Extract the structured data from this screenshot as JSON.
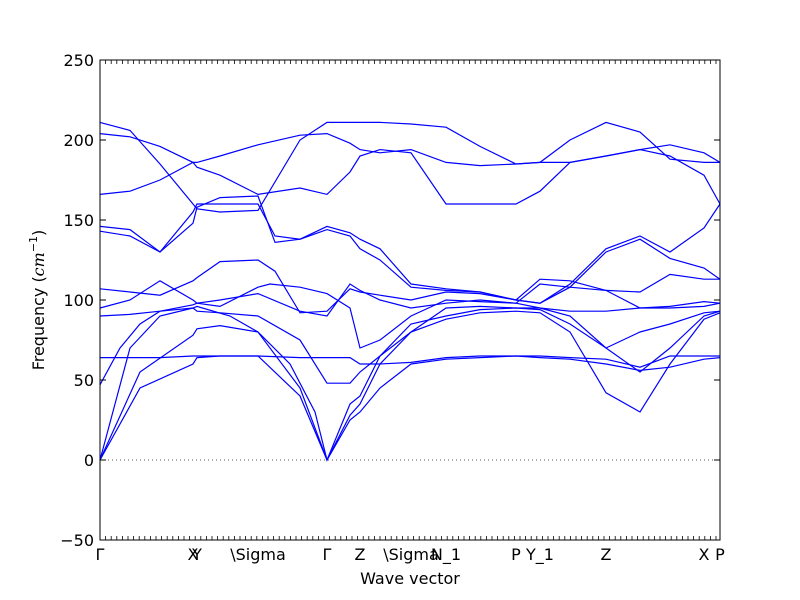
{
  "chart_data": {
    "type": "line",
    "xlabel": "Wave vector",
    "ylabel": "Frequency",
    "ylabel_unit": "cm",
    "ylabel_unit_exp": "−1",
    "ylim": [
      -50,
      250
    ],
    "yticks": [
      -50,
      0,
      50,
      100,
      150,
      200,
      250
    ],
    "xlim": [
      0,
      620
    ],
    "xticks": [
      {
        "pos": 0,
        "label": "Γ"
      },
      {
        "pos": 93,
        "label": "X"
      },
      {
        "pos": 97,
        "label": "Y"
      },
      {
        "pos": 158,
        "label": "\\Sigma"
      },
      {
        "pos": 227,
        "label": "Γ"
      },
      {
        "pos": 260,
        "label": "Z"
      },
      {
        "pos": 311,
        "label": "\\Sigma"
      },
      {
        "pos": 346,
        "label": "N_1"
      },
      {
        "pos": 416,
        "label": "P"
      },
      {
        "pos": 440,
        "label": "Y_1"
      },
      {
        "pos": 506,
        "label": "Z"
      },
      {
        "pos": 604,
        "label": "X"
      },
      {
        "pos": 620,
        "label": "P"
      }
    ],
    "zero_line": 0,
    "series": [
      {
        "x": [
          0,
          40,
          93,
          97,
          120,
          158,
          200,
          227,
          250,
          260,
          280,
          311,
          346,
          380,
          416,
          440,
          470,
          506,
          540,
          570,
          604,
          620
        ],
        "y": [
          0,
          45,
          60,
          64,
          65,
          65,
          40,
          0,
          25,
          30,
          45,
          60,
          63,
          64,
          65,
          64,
          63,
          60,
          56,
          58,
          63,
          64
        ]
      },
      {
        "x": [
          0,
          40,
          93,
          97,
          120,
          158,
          200,
          227,
          250,
          260,
          280,
          311,
          346,
          380,
          416,
          440,
          470,
          506,
          540,
          570,
          604,
          620
        ],
        "y": [
          0,
          55,
          78,
          82,
          84,
          80,
          45,
          0,
          28,
          35,
          60,
          80,
          88,
          92,
          93,
          92,
          80,
          42,
          30,
          60,
          88,
          92
        ]
      },
      {
        "x": [
          0,
          30,
          60,
          93,
          97,
          130,
          158,
          190,
          215,
          227,
          250,
          260,
          280,
          311,
          346,
          380,
          416,
          440,
          470,
          506,
          540,
          570,
          604,
          620
        ],
        "y": [
          0,
          70,
          90,
          95,
          96,
          90,
          80,
          60,
          30,
          0,
          35,
          40,
          65,
          85,
          90,
          94,
          95,
          94,
          85,
          70,
          80,
          85,
          92,
          93
        ]
      },
      {
        "x": [
          0,
          20,
          40,
          60,
          93,
          97,
          120,
          158,
          200,
          227,
          250,
          260,
          280,
          311,
          346,
          380,
          416,
          440,
          470,
          506,
          540,
          570,
          604,
          620
        ],
        "y": [
          64,
          64,
          64,
          64,
          65,
          65,
          65,
          65,
          64,
          64,
          64,
          60,
          60,
          61,
          64,
          65,
          65,
          65,
          64,
          63,
          58,
          65,
          65,
          65
        ]
      },
      {
        "x": [
          0,
          20,
          40,
          60,
          93,
          97,
          120,
          158,
          200,
          227,
          250,
          260,
          280,
          311,
          346,
          380,
          416,
          440,
          470,
          506,
          540,
          570,
          604,
          620
        ],
        "y": [
          47,
          70,
          85,
          93,
          95,
          93,
          92,
          90,
          75,
          48,
          48,
          55,
          65,
          80,
          95,
          96,
          95,
          95,
          90,
          70,
          55,
          70,
          90,
          93
        ]
      },
      {
        "x": [
          0,
          30,
          60,
          93,
          97,
          120,
          158,
          200,
          227,
          250,
          260,
          280,
          311,
          346,
          380,
          416,
          440,
          470,
          506,
          540,
          570,
          604,
          620
        ],
        "y": [
          90,
          91,
          93,
          97,
          98,
          100,
          104,
          93,
          90,
          110,
          106,
          100,
          95,
          98,
          100,
          98,
          95,
          93,
          93,
          95,
          95,
          96,
          98
        ]
      },
      {
        "x": [
          0,
          30,
          60,
          93,
          97,
          120,
          158,
          170,
          200,
          227,
          250,
          260,
          280,
          311,
          346,
          380,
          416,
          440,
          470,
          506,
          540,
          570,
          604,
          620
        ],
        "y": [
          95,
          100,
          112,
          100,
          98,
          96,
          108,
          110,
          108,
          104,
          95,
          70,
          75,
          90,
          100,
          99,
          98,
          110,
          108,
          106,
          95,
          96,
          99,
          98
        ]
      },
      {
        "x": [
          0,
          30,
          60,
          93,
          97,
          120,
          158,
          175,
          200,
          227,
          250,
          260,
          280,
          311,
          346,
          380,
          416,
          440,
          470,
          506,
          540,
          570,
          604,
          620
        ],
        "y": [
          107,
          105,
          103,
          112,
          114,
          124,
          125,
          118,
          92,
          93,
          107,
          105,
          103,
          100,
          105,
          104,
          100,
          113,
          112,
          106,
          105,
          116,
          113,
          113
        ]
      },
      {
        "x": [
          0,
          30,
          60,
          93,
          97,
          120,
          158,
          175,
          200,
          227,
          250,
          260,
          280,
          311,
          346,
          380,
          416,
          440,
          470,
          506,
          540,
          570,
          604,
          620
        ],
        "y": [
          143,
          140,
          130,
          155,
          160,
          160,
          160,
          140,
          138,
          144,
          140,
          132,
          125,
          108,
          106,
          105,
          100,
          98,
          108,
          130,
          138,
          126,
          120,
          113
        ]
      },
      {
        "x": [
          0,
          30,
          60,
          93,
          97,
          120,
          158,
          175,
          200,
          227,
          250,
          260,
          280,
          311,
          346,
          380,
          416,
          440,
          470,
          506,
          540,
          570,
          604,
          620
        ],
        "y": [
          146,
          144,
          130,
          148,
          158,
          164,
          165,
          136,
          138,
          146,
          142,
          138,
          132,
          110,
          107,
          105,
          100,
          98,
          110,
          132,
          140,
          130,
          145,
          160
        ]
      },
      {
        "x": [
          0,
          30,
          60,
          93,
          97,
          120,
          158,
          200,
          227,
          250,
          260,
          280,
          311,
          346,
          380,
          416,
          440,
          470,
          506,
          540,
          570,
          604,
          620
        ],
        "y": [
          166,
          168,
          175,
          186,
          186,
          190,
          197,
          203,
          204,
          198,
          194,
          192,
          194,
          186,
          184,
          185,
          186,
          186,
          190,
          194,
          190,
          178,
          160
        ]
      },
      {
        "x": [
          0,
          30,
          60,
          93,
          97,
          120,
          158,
          200,
          227,
          250,
          260,
          280,
          311,
          346,
          380,
          416,
          440,
          470,
          506,
          540,
          570,
          604,
          620
        ],
        "y": [
          204,
          202,
          196,
          186,
          183,
          178,
          166,
          170,
          166,
          180,
          190,
          194,
          192,
          160,
          160,
          160,
          168,
          186,
          190,
          194,
          197,
          192,
          186
        ]
      },
      {
        "x": [
          0,
          30,
          60,
          93,
          97,
          120,
          158,
          200,
          227,
          250,
          260,
          280,
          311,
          346,
          380,
          416,
          440,
          470,
          506,
          540,
          570,
          604,
          620
        ],
        "y": [
          211,
          206,
          185,
          160,
          157,
          155,
          156,
          200,
          211,
          211,
          211,
          211,
          210,
          208,
          196,
          185,
          186,
          200,
          211,
          205,
          188,
          186,
          186
        ]
      }
    ]
  }
}
